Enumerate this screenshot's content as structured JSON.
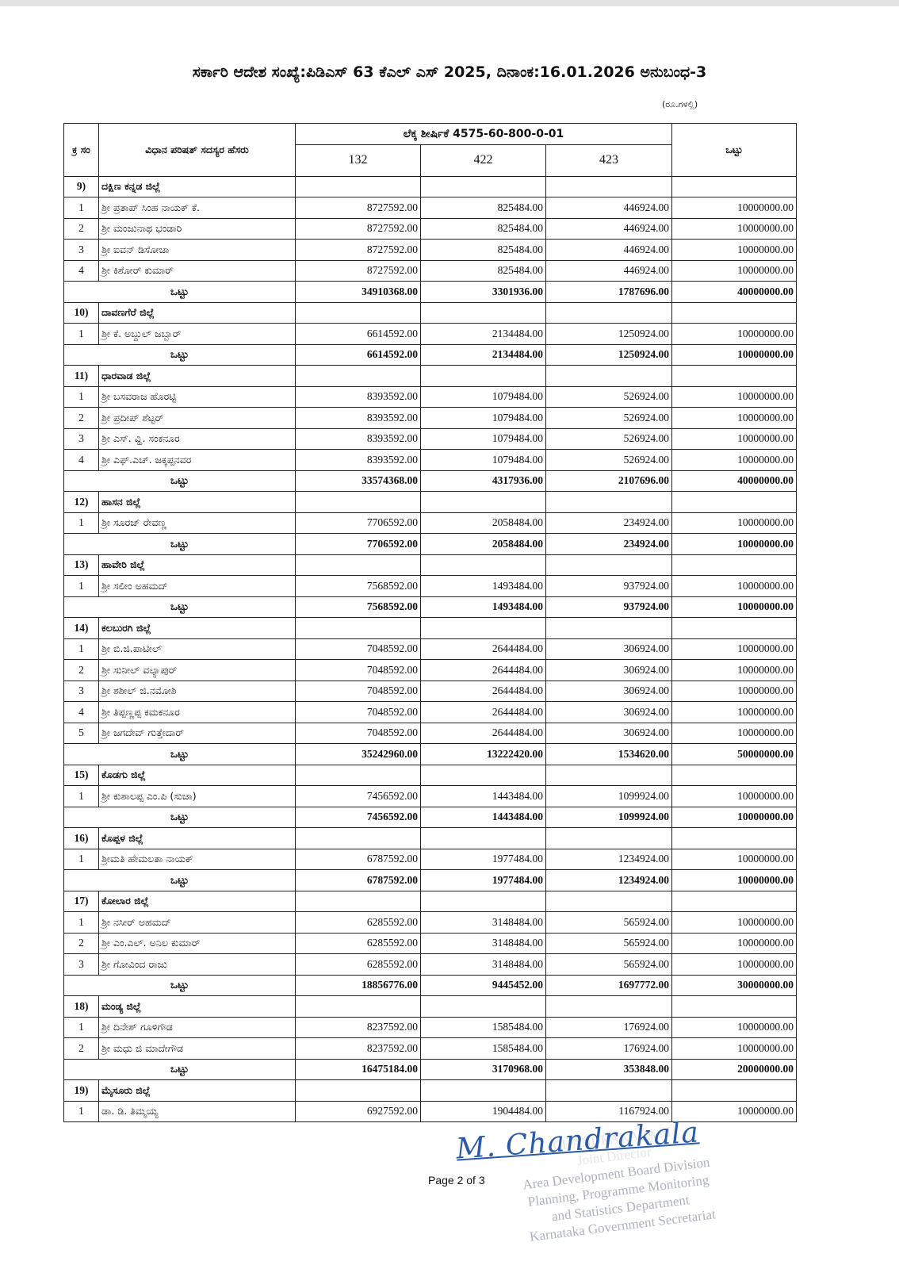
{
  "document": {
    "title": "ಸರ್ಕಾರಿ ಆದೇಶ ಸಂಖ್ಯೆ:ಪಿಡಿಎಸ್ 63 ಕೆಎಲ್ ಎಸ್ 2025, ದಿನಾಂಕ:16.01.2026 ಅನುಬಂಧ-3",
    "unit": "(ರೂ.ಗಳಲ್ಲಿ)",
    "page_number": "Page 2 of 3"
  },
  "table": {
    "headers": {
      "sl": "ಕ್ರ ಸಂ",
      "name": "ವಿಧಾನ ಪರಿಷತ್ ಸದಸ್ಯರ ಹೆಸರು",
      "head_of_account": "ಲೆಕ್ಕ ಶೀರ್ಷಿಕೆ 4575-60-800-0-01",
      "col1": "132",
      "col2": "422",
      "col3": "423",
      "total": "ಒಟ್ಟು"
    },
    "total_label": "ಒಟ್ಟು",
    "districts": [
      {
        "no": "9)",
        "name": "ದಕ್ಷಿಣ ಕನ್ನಡ ಜಿಲ್ಲೆ",
        "members": [
          [
            "1",
            "ಶ್ರೀ ಪ್ರತಾಪ್ ಸಿಂಹ ನಾಯಕ್ ಕೆ.",
            "8727592.00",
            "825484.00",
            "446924.00",
            "10000000.00"
          ],
          [
            "2",
            "ಶ್ರೀ ಮಂಜುನಾಥ ಭಂಡಾರಿ",
            "8727592.00",
            "825484.00",
            "446924.00",
            "10000000.00"
          ],
          [
            "3",
            "ಶ್ರೀ ಐವನ್ ಡಿಸೋಜಾ",
            "8727592.00",
            "825484.00",
            "446924.00",
            "10000000.00"
          ],
          [
            "4",
            "ಶ್ರೀ ಕಿಶೋರ್ ಕುಮಾರ್",
            "8727592.00",
            "825484.00",
            "446924.00",
            "10000000.00"
          ]
        ],
        "total": [
          "34910368.00",
          "3301936.00",
          "1787696.00",
          "40000000.00"
        ]
      },
      {
        "no": "10)",
        "name": "ದಾವಣಗೆರೆ ಜಿಲ್ಲೆ",
        "members": [
          [
            "1",
            "ಶ್ರೀ ಕೆ. ಅಬ್ದುಲ್ ಜಬ್ಬಾರ್",
            "6614592.00",
            "2134484.00",
            "1250924.00",
            "10000000.00"
          ]
        ],
        "total": [
          "6614592.00",
          "2134484.00",
          "1250924.00",
          "10000000.00"
        ]
      },
      {
        "no": "11)",
        "name": "ಧಾರವಾಡ ಜಿಲ್ಲೆ",
        "members": [
          [
            "1",
            "ಶ್ರೀ ಬಸವರಾಜ ಹೊರಟ್ಟಿ",
            "8393592.00",
            "1079484.00",
            "526924.00",
            "10000000.00"
          ],
          [
            "2",
            "ಶ್ರೀ ಪ್ರದೀಪ್ ಶೆಟ್ಟರ್",
            "8393592.00",
            "1079484.00",
            "526924.00",
            "10000000.00"
          ],
          [
            "3",
            "ಶ್ರೀ ಎಸ್. ವ್ಹಿ. ಸಂಕನೂರ",
            "8393592.00",
            "1079484.00",
            "526924.00",
            "10000000.00"
          ],
          [
            "4",
            "ಶ್ರೀ ಎಫ್.ಎಚ್. ಜಕ್ಕಪ್ಪನವರ",
            "8393592.00",
            "1079484.00",
            "526924.00",
            "10000000.00"
          ]
        ],
        "total": [
          "33574368.00",
          "4317936.00",
          "2107696.00",
          "40000000.00"
        ]
      },
      {
        "no": "12)",
        "name": "ಹಾಸನ ಜಿಲ್ಲೆ",
        "members": [
          [
            "1",
            "ಶ್ರೀ ಸೂರಜ್ ರೇವಣ್ಣ",
            "7706592.00",
            "2058484.00",
            "234924.00",
            "10000000.00"
          ]
        ],
        "total": [
          "7706592.00",
          "2058484.00",
          "234924.00",
          "10000000.00"
        ]
      },
      {
        "no": "13)",
        "name": "ಹಾವೇರಿ ಜಿಲ್ಲೆ",
        "members": [
          [
            "1",
            "ಶ್ರೀ ಸಲೀಂ ಅಹಮದ್",
            "7568592.00",
            "1493484.00",
            "937924.00",
            "10000000.00"
          ]
        ],
        "total": [
          "7568592.00",
          "1493484.00",
          "937924.00",
          "10000000.00"
        ]
      },
      {
        "no": "14)",
        "name": "ಕಲಬುರಗಿ ಜಿಲ್ಲೆ",
        "members": [
          [
            "1",
            "ಶ್ರೀ ಬಿ.ಜಿ.ಪಾಟೀಲ್",
            "7048592.00",
            "2644484.00",
            "306924.00",
            "10000000.00"
          ],
          [
            "2",
            "ಶ್ರೀ ಸುನೀಲ್ ವಲ್ಯಾಪುರ್",
            "7048592.00",
            "2644484.00",
            "306924.00",
            "10000000.00"
          ],
          [
            "3",
            "ಶ್ರೀ ಶಶೀಲ್ ಜಿ.ನಮೋಶಿ",
            "7048592.00",
            "2644484.00",
            "306924.00",
            "10000000.00"
          ],
          [
            "4",
            "ಶ್ರೀ ತಿಪ್ಪಣ್ಣಪ್ಪ ಕಮಕನೂರ",
            "7048592.00",
            "2644484.00",
            "306924.00",
            "10000000.00"
          ],
          [
            "5",
            "ಶ್ರೀ ಜಗದೇವ್ ಗುತ್ತೇದಾರ್",
            "7048592.00",
            "2644484.00",
            "306924.00",
            "10000000.00"
          ]
        ],
        "total": [
          "35242960.00",
          "13222420.00",
          "1534620.00",
          "50000000.00"
        ]
      },
      {
        "no": "15)",
        "name": "ಕೊಡಗು ಜಿಲ್ಲೆ",
        "members": [
          [
            "1",
            "ಶ್ರೀ ಕುಶಾಲಪ್ಪ ಎಂ.ಪಿ (ಸುಜಾ)",
            "7456592.00",
            "1443484.00",
            "1099924.00",
            "10000000.00"
          ]
        ],
        "total": [
          "7456592.00",
          "1443484.00",
          "1099924.00",
          "10000000.00"
        ]
      },
      {
        "no": "16)",
        "name": "ಕೊಪ್ಪಳ ಜಿಲ್ಲೆ",
        "members": [
          [
            "1",
            "ಶ್ರೀಮತಿ ಹೇಮಲತಾ ನಾಯಕ್",
            "6787592.00",
            "1977484.00",
            "1234924.00",
            "10000000.00"
          ]
        ],
        "total": [
          "6787592.00",
          "1977484.00",
          "1234924.00",
          "10000000.00"
        ]
      },
      {
        "no": "17)",
        "name": "ಕೋಲಾರ ಜಿಲ್ಲೆ",
        "members": [
          [
            "1",
            "ಶ್ರೀ ನಸೀರ್ ಅಹಮದ್",
            "6285592.00",
            "3148484.00",
            "565924.00",
            "10000000.00"
          ],
          [
            "2",
            "ಶ್ರೀ ಎಂ.ಎಲ್. ಅನಿಲ ಕುಮಾರ್",
            "6285592.00",
            "3148484.00",
            "565924.00",
            "10000000.00"
          ],
          [
            "3",
            "ಶ್ರೀ ಗೋವಿಂದ ರಾಜು",
            "6285592.00",
            "3148484.00",
            "565924.00",
            "10000000.00"
          ]
        ],
        "total": [
          "18856776.00",
          "9445452.00",
          "1697772.00",
          "30000000.00"
        ]
      },
      {
        "no": "18)",
        "name": "ಮಂಡ್ಯ ಜಿಲ್ಲೆ",
        "members": [
          [
            "1",
            "ಶ್ರೀ ದಿನೇಶ್ ಗೂಳಿಗೌಡ",
            "8237592.00",
            "1585484.00",
            "176924.00",
            "10000000.00"
          ],
          [
            "2",
            "ಶ್ರೀ ಮಧು ಜಿ ಮಾದೇಗೌಡ",
            "8237592.00",
            "1585484.00",
            "176924.00",
            "10000000.00"
          ]
        ],
        "total": [
          "16475184.00",
          "3170968.00",
          "353848.00",
          "20000000.00"
        ]
      },
      {
        "no": "19)",
        "name": "ಮೈಸೂರು ಜಿಲ್ಲೆ",
        "members": [
          [
            "1",
            "ಡಾ. ಡಿ. ತಿಮ್ಮಯ್ಯ",
            "6927592.00",
            "1904484.00",
            "1167924.00",
            "10000000.00"
          ]
        ],
        "total": null
      }
    ]
  },
  "signature": {
    "text": "M. Chandrakala",
    "seal_lines": [
      "CHANDRAKALA M",
      "Joint Director",
      "Area Development Board Division",
      "Planning, Programme Monitoring",
      "and Statistics Department",
      "Karnataka Government Secretariat"
    ],
    "ink_color": "#2a5aa8"
  }
}
